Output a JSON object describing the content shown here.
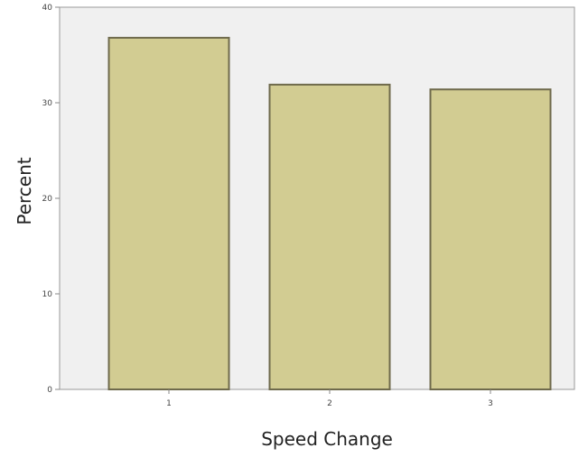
{
  "chart_data": {
    "type": "bar",
    "title": "",
    "xlabel": "Speed Change",
    "ylabel": "Percent",
    "categories": [
      "1",
      "2",
      "3"
    ],
    "values": [
      36.8,
      31.9,
      31.4
    ],
    "ylim": [
      0,
      40
    ],
    "yticks": [
      "0",
      "10",
      "20",
      "30",
      "40"
    ],
    "grid": false,
    "legend": "none",
    "colors": {
      "plot_background": "#f0f0f0",
      "bar_fill": "#d2cc92",
      "bar_stroke": "#6f6a4c",
      "axis": "#888888"
    }
  }
}
